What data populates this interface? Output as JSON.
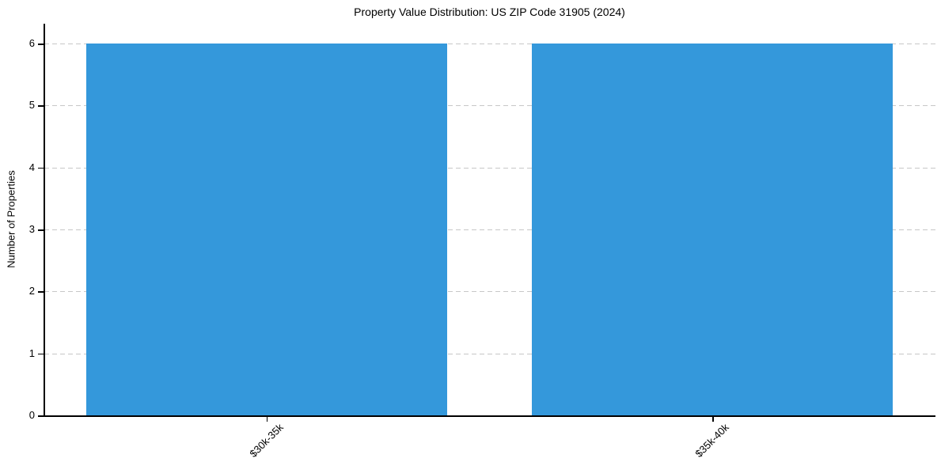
{
  "chart_data": {
    "type": "bar",
    "title": "Property Value Distribution: US ZIP Code 31905 (2024)",
    "categories": [
      "$30k-35k",
      "$35k-40k"
    ],
    "values": [
      6,
      6
    ],
    "xlabel": "",
    "ylabel": "Number of Properties",
    "ylim": [
      0,
      6.32
    ],
    "yticks": [
      0,
      1,
      2,
      3,
      4,
      5,
      6
    ],
    "legend": "none",
    "grid": "horizontal-dashed",
    "x_tick_label_rotation_deg": 45,
    "colors": {
      "bar": "#3498db",
      "grid": "#c7c7c7",
      "axis": "#000000",
      "text": "#000000",
      "background": "#ffffff"
    }
  }
}
